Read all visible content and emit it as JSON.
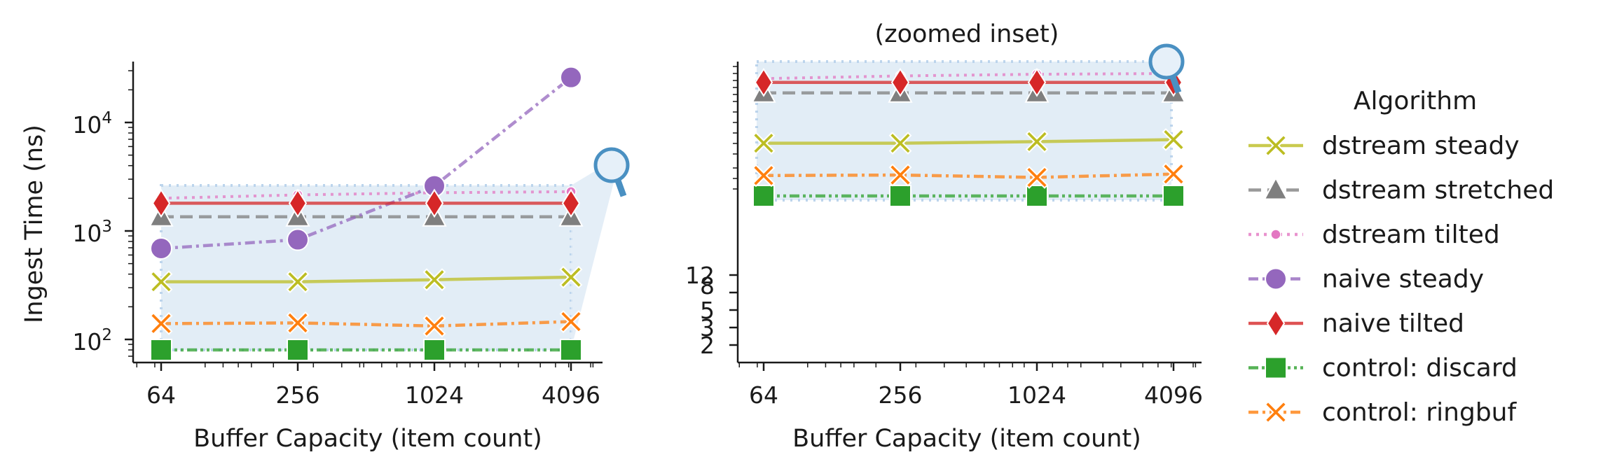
{
  "chart_data": [
    {
      "type": "line",
      "panel": "main",
      "title": "",
      "xlabel": "Buffer Capacity (item count)",
      "ylabel": "Ingest Time (ns)",
      "x_scale": "log2",
      "y_scale": "log10",
      "x_ticks": [
        "64",
        "256",
        "1024",
        "4096"
      ],
      "y_ticks": [
        {
          "base": "10",
          "exp": "2",
          "value": 100
        },
        {
          "base": "10",
          "exp": "3",
          "value": 1000
        },
        {
          "base": "10",
          "exp": "4",
          "value": 10000
        }
      ],
      "x": [
        64,
        256,
        1024,
        4096
      ],
      "series": [
        {
          "name": "dstream steady",
          "values": [
            340,
            340,
            355,
            375
          ]
        },
        {
          "name": "dstream stretched",
          "values": [
            1350,
            1350,
            1350,
            1350
          ]
        },
        {
          "name": "dstream tilted",
          "values": [
            2000,
            2150,
            2250,
            2300
          ]
        },
        {
          "name": "naive steady",
          "values": [
            690,
            830,
            2600,
            26000
          ]
        },
        {
          "name": "naive tilted",
          "values": [
            1800,
            1800,
            1800,
            1800
          ]
        },
        {
          "name": "control: discard",
          "values": [
            80,
            80,
            80,
            80
          ]
        },
        {
          "name": "control: ringbuf",
          "values": [
            140,
            142,
            133,
            146
          ]
        }
      ],
      "grid": false
    },
    {
      "type": "line",
      "panel": "inset",
      "title": "(zoomed inset)",
      "xlabel": "Buffer Capacity (item count)",
      "ylabel": "",
      "x_scale": "log2",
      "y_scale": "log10",
      "x_ticks": [
        "64",
        "256",
        "1024",
        "4096"
      ],
      "y_ticks": [
        "2",
        "3",
        "5",
        "8",
        "12"
      ],
      "x": [
        64,
        256,
        1024,
        4096
      ],
      "series": [
        {
          "name": "dstream steady",
          "values": [
            340,
            340,
            355,
            375
          ]
        },
        {
          "name": "dstream stretched",
          "values": [
            1350,
            1350,
            1350,
            1350
          ]
        },
        {
          "name": "dstream tilted",
          "values": [
            2000,
            2150,
            2250,
            2300
          ]
        },
        {
          "name": "naive tilted",
          "values": [
            1800,
            1800,
            1800,
            1800
          ]
        },
        {
          "name": "control: discard",
          "values": [
            80,
            80,
            80,
            80
          ]
        },
        {
          "name": "control: ringbuf",
          "values": [
            140,
            142,
            133,
            146
          ]
        }
      ],
      "grid": false
    }
  ],
  "legend": {
    "title": "Algorithm",
    "placement": "right",
    "entries": [
      {
        "label": "dstream steady",
        "color": "#bcbd22",
        "marker": "x",
        "dash": "solid"
      },
      {
        "label": "dstream stretched",
        "color": "#7f7f7f",
        "marker": "triangle",
        "dash": "dashed"
      },
      {
        "label": "dstream tilted",
        "color": "#e377c2",
        "marker": "dot",
        "dash": "dotted"
      },
      {
        "label": "naive steady",
        "color": "#9467bd",
        "marker": "circle",
        "dash": "dashdot"
      },
      {
        "label": "naive tilted",
        "color": "#d62728",
        "marker": "diamond",
        "dash": "solid"
      },
      {
        "label": "control: discard",
        "color": "#2ca02c",
        "marker": "square",
        "dash": "dashdotdot"
      },
      {
        "label": "control: ringbuf",
        "color": "#ff7f0e",
        "marker": "x",
        "dash": "dashdot"
      }
    ]
  },
  "zoom_icon": "magnifier-icon",
  "colors": {
    "inset_fill": "#dbe8f4",
    "inset_border": "#a9c8e6",
    "magnifier": "#4a90c2"
  }
}
